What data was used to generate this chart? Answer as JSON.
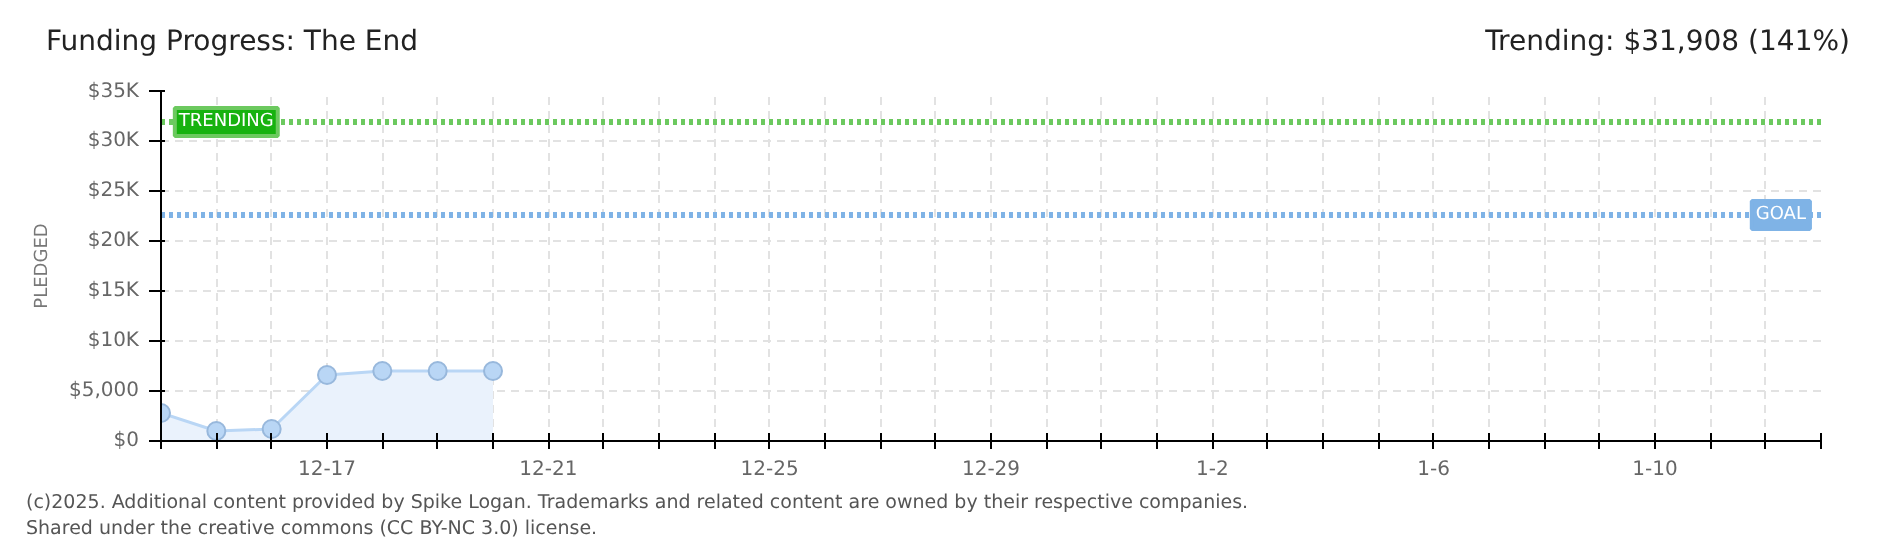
{
  "chart_data": {
    "type": "area",
    "title": "Funding Progress: The End",
    "subtitle": "Trending: $31,908 (141%)",
    "ylabel": "PLEDGED",
    "x": [
      "2024-12-14",
      "2024-12-15",
      "2024-12-16",
      "2024-12-17",
      "2024-12-18",
      "2024-12-19",
      "2024-12-20"
    ],
    "series": [
      {
        "color": "#b9d6f5",
        "values": [
          2800,
          1000,
          1200,
          6600,
          7000,
          7000,
          7000
        ]
      }
    ],
    "marker": "circle",
    "grid": true,
    "xlim": [
      "2024-12-14",
      "2025-01-13"
    ],
    "xticks": [
      {
        "value": "2024-12-14",
        "label": null
      },
      {
        "value": "2024-12-15",
        "label": null
      },
      {
        "value": "2024-12-16",
        "label": null
      },
      {
        "value": "2024-12-17",
        "label": "12-17"
      },
      {
        "value": "2024-12-18",
        "label": null
      },
      {
        "value": "2024-12-19",
        "label": null
      },
      {
        "value": "2024-12-20",
        "label": null
      },
      {
        "value": "2024-12-21",
        "label": "12-21"
      },
      {
        "value": "2024-12-22",
        "label": null
      },
      {
        "value": "2024-12-23",
        "label": null
      },
      {
        "value": "2024-12-24",
        "label": null
      },
      {
        "value": "2024-12-25",
        "label": "12-25"
      },
      {
        "value": "2024-12-26",
        "label": null
      },
      {
        "value": "2024-12-27",
        "label": null
      },
      {
        "value": "2024-12-28",
        "label": null
      },
      {
        "value": "2024-12-29",
        "label": "12-29"
      },
      {
        "value": "2024-12-30",
        "label": null
      },
      {
        "value": "2024-12-31",
        "label": null
      },
      {
        "value": "2025-01-01",
        "label": null
      },
      {
        "value": "2025-01-02",
        "label": "1-2"
      },
      {
        "value": "2025-01-03",
        "label": null
      },
      {
        "value": "2025-01-04",
        "label": null
      },
      {
        "value": "2025-01-05",
        "label": null
      },
      {
        "value": "2025-01-06",
        "label": "1-6"
      },
      {
        "value": "2025-01-07",
        "label": null
      },
      {
        "value": "2025-01-08",
        "label": null
      },
      {
        "value": "2025-01-09",
        "label": null
      },
      {
        "value": "2025-01-10",
        "label": "1-10"
      },
      {
        "value": "2025-01-11",
        "label": null
      },
      {
        "value": "2025-01-12",
        "label": null
      },
      {
        "value": "2025-01-13",
        "label": null
      }
    ],
    "ylim": [
      0,
      35000
    ],
    "yticks": [
      {
        "value": 0,
        "label": "$0"
      },
      {
        "value": 5000,
        "label": "$5,000"
      },
      {
        "value": 10000,
        "label": "$10K"
      },
      {
        "value": 15000,
        "label": "$15K"
      },
      {
        "value": 20000,
        "label": "$20K"
      },
      {
        "value": 25000,
        "label": "$25K"
      },
      {
        "value": 30000,
        "label": "$30K"
      },
      {
        "value": 35000,
        "label": "$35K"
      }
    ],
    "ref_lines": [
      {
        "axis": "y",
        "value": 31908,
        "label": "TRENDING",
        "color": "#6cc95f",
        "line_style": "dotted"
      },
      {
        "axis": "y",
        "value": 22600,
        "label": "GOAL",
        "color": "#7fb3e6",
        "line_style": "dotted"
      }
    ],
    "annotations": [
      "(c)2025. Additional content provided by Spike Logan. Trademarks and related content are owned by their respective companies.",
      "Shared under the creative commons (CC BY-NC 3.0) license."
    ]
  }
}
